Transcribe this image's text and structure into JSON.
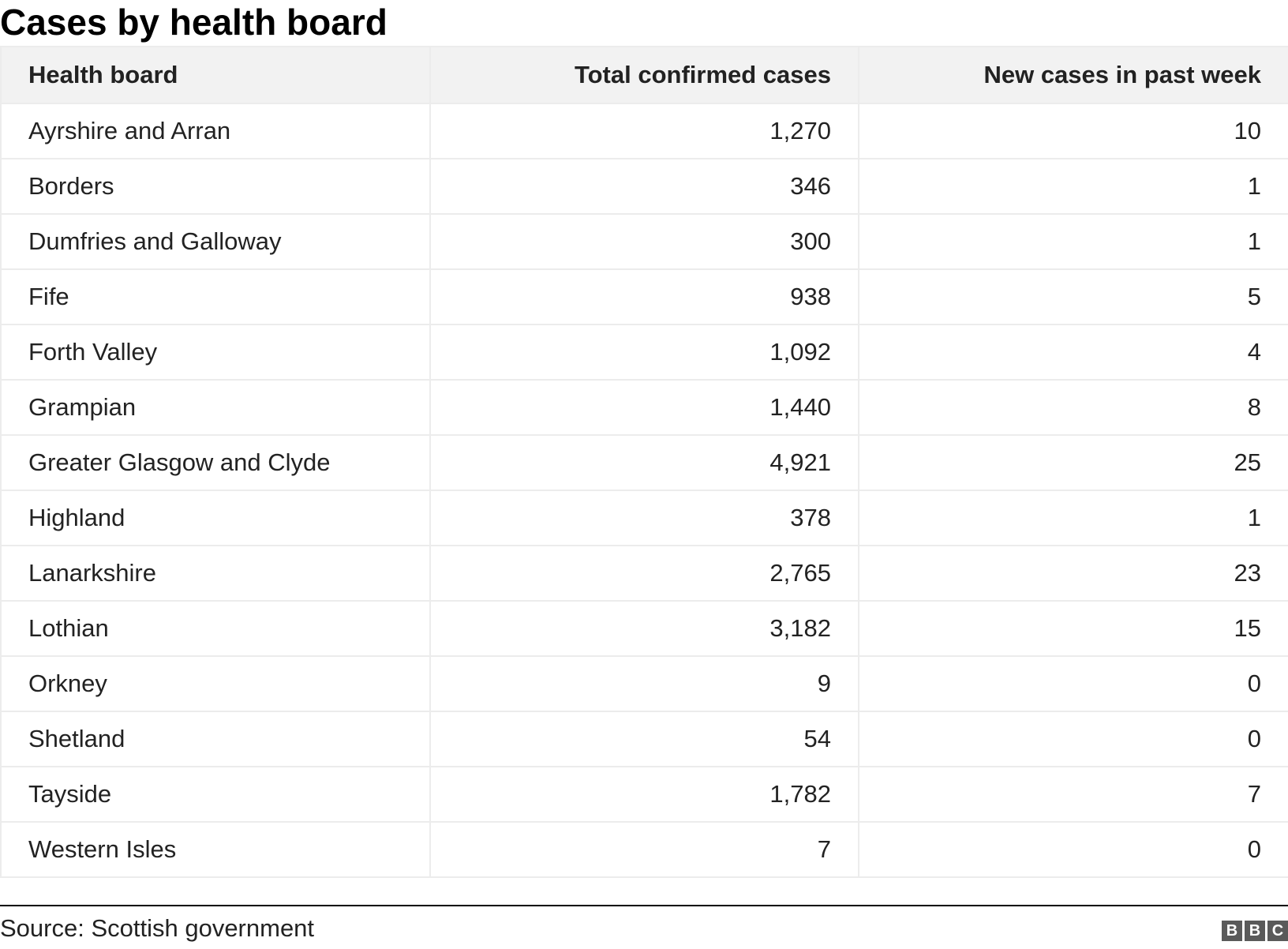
{
  "chart_data": {
    "type": "table",
    "title": "Cases by health board",
    "columns": [
      "Health board",
      "Total confirmed cases",
      "New cases in past week"
    ],
    "rows": [
      [
        "Ayrshire and Arran",
        "1,270",
        "10"
      ],
      [
        "Borders",
        "346",
        "1"
      ],
      [
        "Dumfries and Galloway",
        "300",
        "1"
      ],
      [
        "Fife",
        "938",
        "5"
      ],
      [
        "Forth Valley",
        "1,092",
        "4"
      ],
      [
        "Grampian",
        "1,440",
        "8"
      ],
      [
        "Greater Glasgow and Clyde",
        "4,921",
        "25"
      ],
      [
        "Highland",
        "378",
        "1"
      ],
      [
        "Lanarkshire",
        "2,765",
        "23"
      ],
      [
        "Lothian",
        "3,182",
        "15"
      ],
      [
        "Orkney",
        "9",
        "0"
      ],
      [
        "Shetland",
        "54",
        "0"
      ],
      [
        "Tayside",
        "1,782",
        "7"
      ],
      [
        "Western Isles",
        "7",
        "0"
      ]
    ]
  },
  "source": "Source: Scottish government",
  "logo": {
    "letters": [
      "B",
      "B",
      "C"
    ]
  },
  "colors": {
    "header_bg": "#f2f2f2",
    "border": "#ececec",
    "logo_bg": "#5a5a5a"
  }
}
